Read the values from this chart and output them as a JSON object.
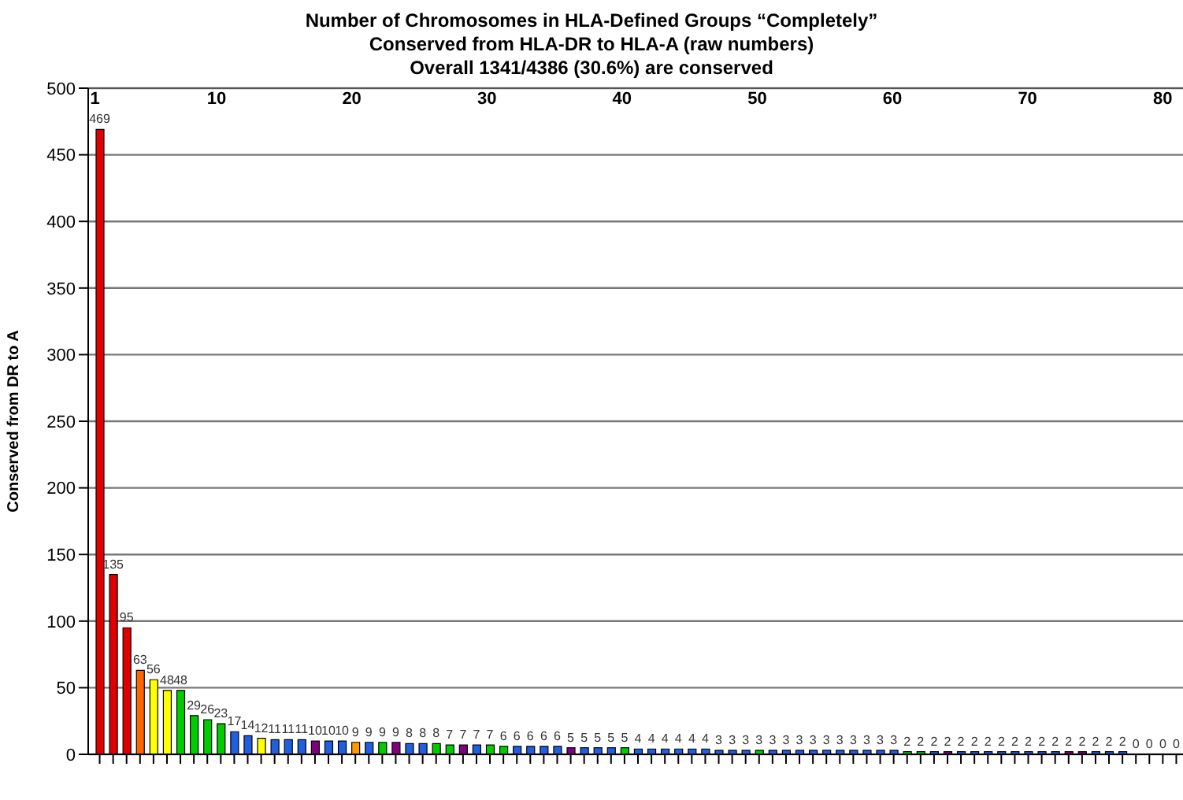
{
  "chart_data": {
    "type": "bar",
    "title": "Number of Chromosomes in HLA-Defined Groups “Completely” Conserved from HLA-DR to HLA-A (raw numbers)",
    "subtitle": "Overall 1341/4386 (30.6%) are conserved",
    "ylabel": "Conserved from DR to A",
    "categories": [
      null,
      null,
      null,
      null,
      null,
      null,
      null,
      null,
      null,
      null,
      null,
      null,
      null,
      null,
      null,
      null,
      null,
      null,
      null,
      null,
      null,
      null,
      null,
      null,
      null,
      null,
      null,
      null,
      null,
      null,
      null,
      null,
      null,
      null,
      null,
      null,
      null,
      null,
      null,
      null,
      null,
      null,
      null,
      null,
      null,
      null,
      null,
      null,
      null,
      null,
      null,
      null,
      null,
      null,
      null,
      null,
      null,
      null,
      null,
      null,
      null,
      null,
      null,
      null,
      null,
      null,
      null,
      null,
      null,
      null,
      null,
      null,
      null,
      null,
      null,
      null,
      null,
      null,
      null,
      null,
      null
    ],
    "values": [
      469,
      135,
      95,
      63,
      56,
      48,
      48,
      29,
      26,
      23,
      17,
      14,
      12,
      11,
      11,
      11,
      10,
      10,
      10,
      9,
      9,
      9,
      9,
      8,
      8,
      8,
      7,
      7,
      7,
      7,
      6,
      6,
      6,
      6,
      6,
      5,
      5,
      5,
      5,
      5,
      4,
      4,
      4,
      4,
      4,
      4,
      3,
      3,
      3,
      3,
      3,
      3,
      3,
      3,
      3,
      3,
      3,
      3,
      3,
      3,
      2,
      2,
      2,
      2,
      2,
      2,
      2,
      2,
      2,
      2,
      2,
      2,
      2,
      2,
      2,
      2,
      2,
      0,
      0,
      0,
      0
    ],
    "colors": [
      "#e00000",
      "#e00000",
      "#e00000",
      "#ff6600",
      "#ffff00",
      "#ffff00",
      "#00cc00",
      "#00cc00",
      "#00cc00",
      "#00cc00",
      "#1f5fe0",
      "#1f5fe0",
      "#ffff00",
      "#1f5fe0",
      "#1f5fe0",
      "#1f5fe0",
      "#800080",
      "#1f5fe0",
      "#1f5fe0",
      "#ff9900",
      "#1f5fe0",
      "#00cc00",
      "#800080",
      "#1f5fe0",
      "#1f5fe0",
      "#00cc00",
      "#00cc00",
      "#800080",
      "#1f5fe0",
      "#00cc00",
      "#00cc00",
      "#1f5fe0",
      "#1f5fe0",
      "#1f5fe0",
      "#1f5fe0",
      "#800080",
      "#1f5fe0",
      "#1f5fe0",
      "#1f5fe0",
      "#00cc00",
      "#1f5fe0",
      "#1f5fe0",
      "#1f5fe0",
      "#1f5fe0",
      "#1f5fe0",
      "#1f5fe0",
      "#1f5fe0",
      "#1f5fe0",
      "#1f5fe0",
      "#00cc00",
      "#1f5fe0",
      "#1f5fe0",
      "#1f5fe0",
      "#1f5fe0",
      "#1f5fe0",
      "#1f5fe0",
      "#1f5fe0",
      "#1f5fe0",
      "#1f5fe0",
      "#1f5fe0",
      "#00cc00",
      "#00cc00",
      "#1f5fe0",
      "#800080",
      "#1f5fe0",
      "#1f5fe0",
      "#1f5fe0",
      "#1f5fe0",
      "#1f5fe0",
      "#1f5fe0",
      "#1f5fe0",
      "#1f5fe0",
      "#800080",
      "#800080",
      "#1f5fe0",
      "#1f5fe0",
      "#1f5fe0",
      "#1f5fe0",
      "#1f5fe0",
      "#1f5fe0",
      "#1f5fe0"
    ],
    "ylim": [
      0,
      500
    ],
    "yticks": [
      0,
      50,
      100,
      150,
      200,
      250,
      300,
      350,
      400,
      450,
      500
    ],
    "x2lim": [
      0.5,
      81.5
    ],
    "x2ticks": [
      1,
      10,
      20,
      30,
      40,
      50,
      60,
      70,
      80
    ],
    "grid": "y",
    "data_labels": true
  }
}
